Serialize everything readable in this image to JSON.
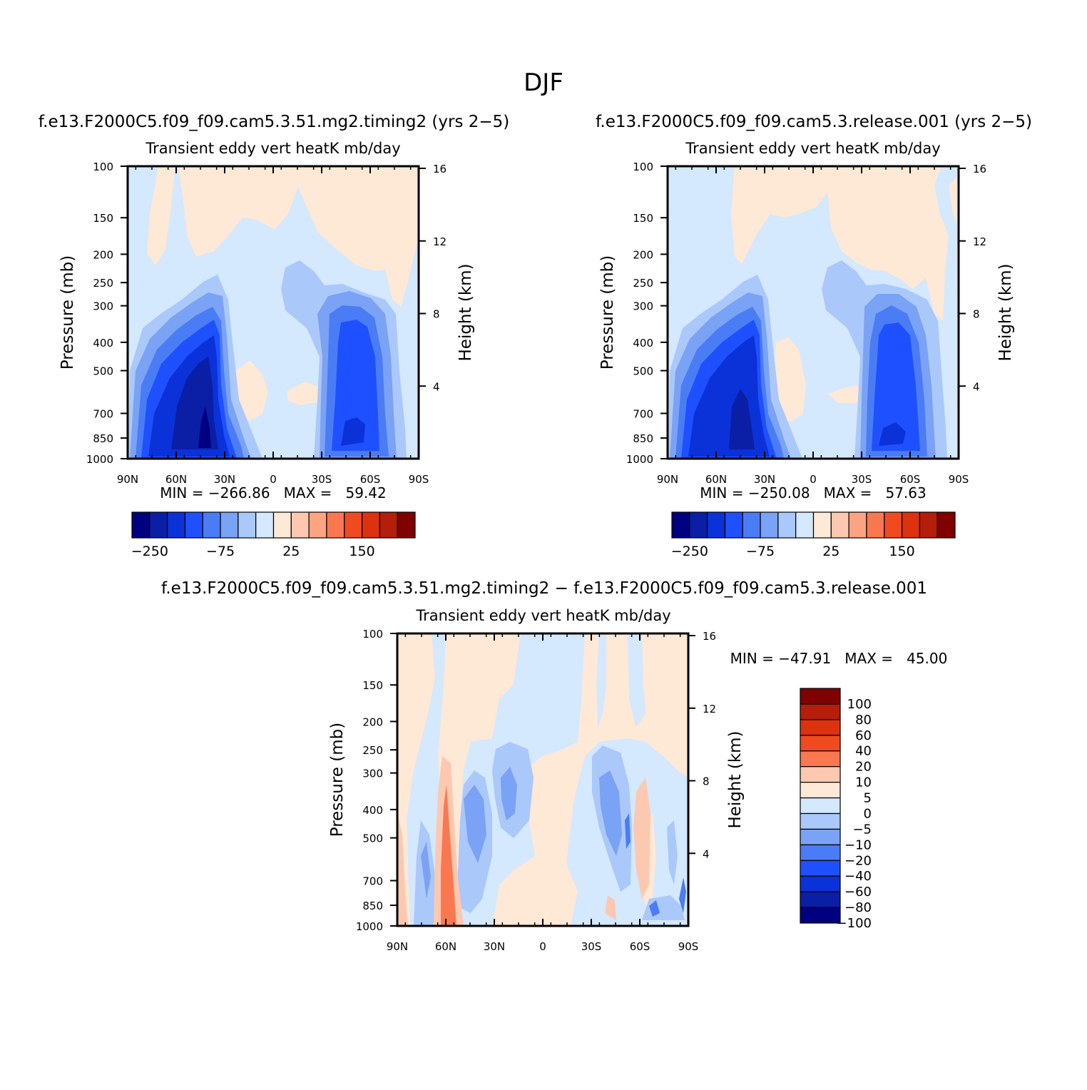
{
  "page": {
    "title": "DJF"
  },
  "colors": {
    "main": [
      "#000080",
      "#0a1ea6",
      "#0a32d8",
      "#1e50ff",
      "#4a7cf5",
      "#7aa2f5",
      "#aac8fa",
      "#d4e8fe",
      "#fee8d6",
      "#fdc8b0",
      "#fca482",
      "#fa7850",
      "#f04a20",
      "#dc3210",
      "#b41e0a",
      "#800000"
    ],
    "diff": [
      "#000080",
      "#0a1ea6",
      "#0a32d8",
      "#1e50ff",
      "#4a7cf5",
      "#7aa2f5",
      "#aac8fa",
      "#d4e8fe",
      "#fee8d6",
      "#fdc8b0",
      "#fa7850",
      "#f04a20",
      "#dc3210",
      "#b41e0a",
      "#800000"
    ]
  },
  "chart_data": [
    {
      "type": "heatmap",
      "title": "f.e13.F2000C5.f09_f09.cam5.3.51.mg2.timing2 (yrs 2−5)",
      "subtitle": "Transient eddy vert heatK mb/day",
      "xlabel": "",
      "ylabel": "Pressure (mb)",
      "y2label": "Height (km)",
      "x_ticks": [
        "90N",
        "60N",
        "30N",
        "0",
        "30S",
        "60S",
        "90S"
      ],
      "y_ticks": [
        "100",
        "150",
        "200",
        "250",
        "300",
        "400",
        "500",
        "700",
        "850",
        "1000"
      ],
      "y2_ticks": [
        "16",
        "12",
        "8",
        "4"
      ],
      "stats": "MIN = −266.86   MAX =   59.42",
      "min": -266.86,
      "max": 59.42,
      "colorbar_labels": [
        "−250",
        "−75",
        "25",
        "150"
      ],
      "colorbar_levels": 16
    },
    {
      "type": "heatmap",
      "title": "f.e13.F2000C5.f09_f09.cam5.3.release.001 (yrs 2−5)",
      "subtitle": "Transient eddy vert heatK mb/day",
      "xlabel": "",
      "ylabel": "Pressure (mb)",
      "y2label": "Height (km)",
      "x_ticks": [
        "90N",
        "60N",
        "30N",
        "0",
        "30S",
        "60S",
        "90S"
      ],
      "y_ticks": [
        "100",
        "150",
        "200",
        "250",
        "300",
        "400",
        "500",
        "700",
        "850",
        "1000"
      ],
      "y2_ticks": [
        "16",
        "12",
        "8",
        "4"
      ],
      "stats": "MIN = −250.08   MAX =   57.63",
      "min": -250.08,
      "max": 57.63,
      "colorbar_labels": [
        "−250",
        "−75",
        "25",
        "150"
      ],
      "colorbar_levels": 16
    },
    {
      "type": "heatmap",
      "title": "f.e13.F2000C5.f09_f09.cam5.3.51.mg2.timing2 − f.e13.F2000C5.f09_f09.cam5.3.release.001",
      "subtitle": "Transient eddy vert heatK mb/day",
      "xlabel": "",
      "ylabel": "Pressure (mb)",
      "y2label": "Height (km)",
      "x_ticks": [
        "90N",
        "60N",
        "30N",
        "0",
        "30S",
        "60S",
        "90S"
      ],
      "y_ticks": [
        "100",
        "150",
        "200",
        "250",
        "300",
        "400",
        "500",
        "700",
        "850",
        "1000"
      ],
      "y2_ticks": [
        "16",
        "12",
        "8",
        "4"
      ],
      "stats": "MIN = −47.91   MAX =   45.00",
      "min": -47.91,
      "max": 45.0,
      "colorbar_labels": [
        "100",
        "80",
        "60",
        "40",
        "20",
        "10",
        "5",
        "0",
        "−5",
        "−10",
        "−20",
        "−40",
        "−60",
        "−80",
        "−100"
      ],
      "colorbar_levels": 15
    }
  ]
}
